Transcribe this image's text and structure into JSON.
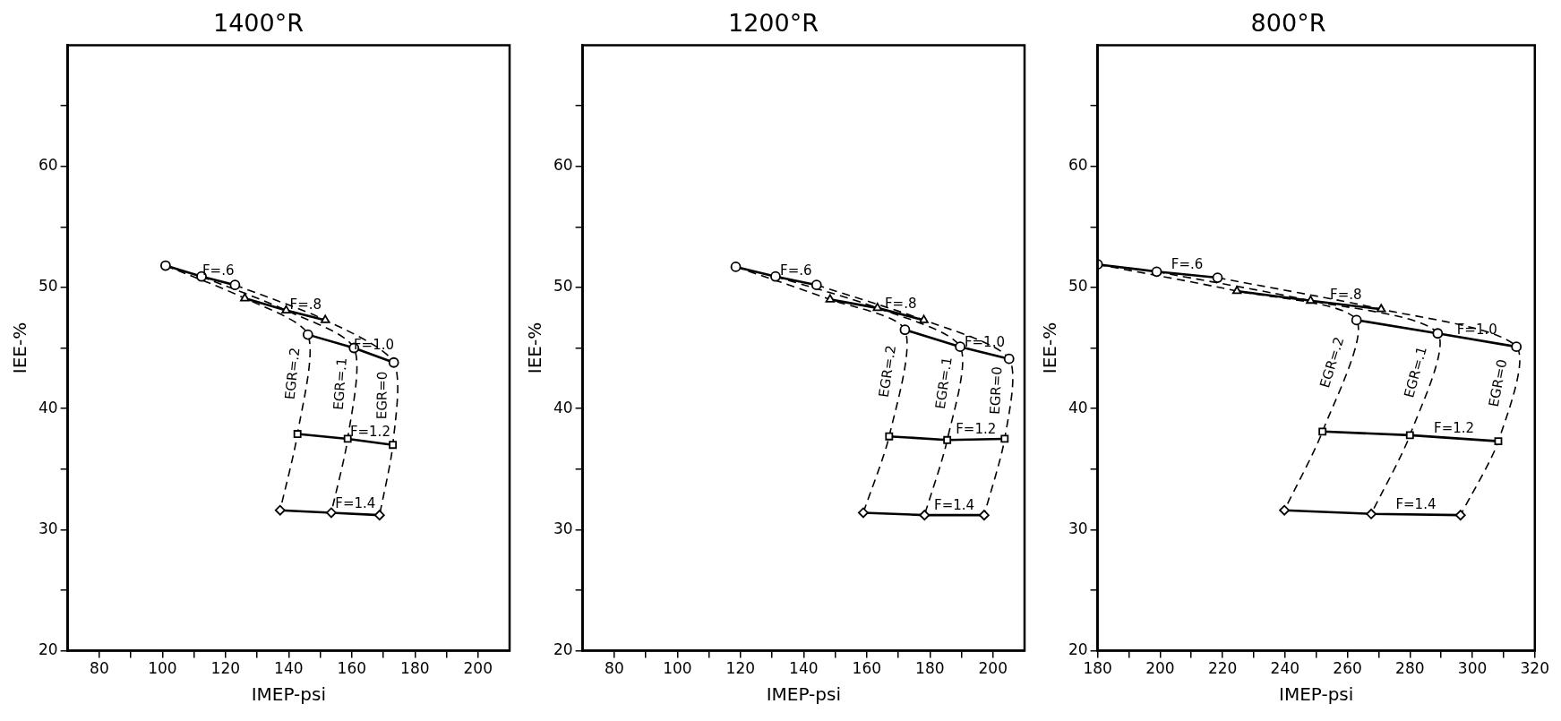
{
  "chart_data": [
    {
      "type": "line",
      "title": "1400°R",
      "xlabel": "IMEP-psi",
      "ylabel": "IEE-%",
      "xlim": [
        70,
        210
      ],
      "xticks": [
        80,
        {
          "value": 90,
          "label": null
        },
        100,
        {
          "value": 110,
          "label": null
        },
        120,
        {
          "value": 130,
          "label": null
        },
        140,
        {
          "value": 150,
          "label": null
        },
        160,
        {
          "value": 170,
          "label": null
        },
        180,
        {
          "value": 190,
          "label": null
        },
        200
      ],
      "ylim": [
        20,
        70
      ],
      "yticks": [
        20,
        {
          "value": 25,
          "label": null
        },
        30,
        {
          "value": 35,
          "label": null
        },
        40,
        {
          "value": 45,
          "label": null
        },
        50,
        {
          "value": 55,
          "label": null
        },
        60,
        {
          "value": 65,
          "label": null
        }
      ],
      "grid": false,
      "legend": false,
      "series": [
        {
          "name": "F=.6",
          "type": "line",
          "color": "#000000",
          "marker": "circle",
          "line_style": "solid",
          "x": [
            101.0,
            112.4,
            123.0
          ],
          "values": [
            51.8,
            50.9,
            50.2
          ]
        },
        {
          "name": "F=.8",
          "type": "line",
          "color": "#000000",
          "marker": "triangle",
          "line_style": "solid",
          "x": [
            126.1,
            139.2,
            151.6
          ],
          "values": [
            49.1,
            48.1,
            47.3
          ]
        },
        {
          "name": "F=1.0",
          "type": "line",
          "color": "#000000",
          "marker": "circle",
          "line_style": "solid",
          "x": [
            146.1,
            160.7,
            173.3
          ],
          "values": [
            46.1,
            45.0,
            43.8
          ]
        },
        {
          "name": "F=1.2",
          "type": "line",
          "color": "#000000",
          "marker": "square",
          "line_style": "solid",
          "x": [
            142.8,
            158.7,
            173.0
          ],
          "values": [
            37.9,
            37.5,
            37.0
          ]
        },
        {
          "name": "F=1.4",
          "type": "line",
          "color": "#000000",
          "marker": "diamond",
          "line_style": "solid",
          "x": [
            137.3,
            153.5,
            168.8
          ],
          "values": [
            31.6,
            31.4,
            31.2
          ]
        },
        {
          "name": "EGR=.2",
          "type": "line",
          "color": "#000000",
          "marker": "none",
          "line_style": "dashed",
          "x": [
            101.0,
            126.1,
            146.1,
            142.8,
            137.3
          ],
          "values": [
            51.8,
            49.1,
            46.1,
            37.9,
            31.6
          ]
        },
        {
          "name": "EGR=.1",
          "type": "line",
          "color": "#000000",
          "marker": "none",
          "line_style": "dashed",
          "x": [
            112.4,
            139.2,
            160.7,
            158.7,
            153.5
          ],
          "values": [
            50.9,
            48.1,
            45.0,
            37.5,
            31.4
          ]
        },
        {
          "name": "EGR=0",
          "type": "line",
          "color": "#000000",
          "marker": "none",
          "line_style": "dashed",
          "x": [
            123.0,
            151.6,
            173.3,
            173.0,
            168.8
          ],
          "values": [
            50.2,
            47.3,
            43.8,
            37.0,
            31.2
          ]
        }
      ]
    },
    {
      "type": "line",
      "title": "1200°R",
      "xlabel": "IMEP-psi",
      "ylabel": "IEE-%",
      "xlim": [
        70,
        210
      ],
      "xticks": [
        80,
        {
          "value": 90,
          "label": null
        },
        100,
        {
          "value": 110,
          "label": null
        },
        120,
        {
          "value": 130,
          "label": null
        },
        140,
        {
          "value": 150,
          "label": null
        },
        160,
        {
          "value": 170,
          "label": null
        },
        180,
        {
          "value": 190,
          "label": null
        },
        200
      ],
      "ylim": [
        20,
        70
      ],
      "yticks": [
        20,
        {
          "value": 25,
          "label": null
        },
        30,
        {
          "value": 35,
          "label": null
        },
        40,
        {
          "value": 45,
          "label": null
        },
        50,
        {
          "value": 55,
          "label": null
        },
        60,
        {
          "value": 65,
          "label": null
        }
      ],
      "grid": false,
      "legend": false,
      "series": [
        {
          "name": "F=.6",
          "type": "line",
          "color": "#000000",
          "marker": "circle",
          "line_style": "solid",
          "x": [
            118.5,
            131.1,
            144.1
          ],
          "values": [
            51.7,
            50.9,
            50.2
          ]
        },
        {
          "name": "F=.8",
          "type": "line",
          "color": "#000000",
          "marker": "triangle",
          "line_style": "solid",
          "x": [
            148.4,
            163.4,
            178.1
          ],
          "values": [
            49.0,
            48.3,
            47.3
          ]
        },
        {
          "name": "F=1.0",
          "type": "line",
          "color": "#000000",
          "marker": "circle",
          "line_style": "solid",
          "x": [
            172.1,
            189.6,
            205.1
          ],
          "values": [
            46.5,
            45.1,
            44.1
          ]
        },
        {
          "name": "F=1.2",
          "type": "line",
          "color": "#000000",
          "marker": "square",
          "line_style": "solid",
          "x": [
            167.1,
            185.5,
            203.7
          ],
          "values": [
            37.7,
            37.4,
            37.5
          ]
        },
        {
          "name": "F=1.4",
          "type": "line",
          "color": "#000000",
          "marker": "diamond",
          "line_style": "solid",
          "x": [
            158.9,
            178.3,
            197.2
          ],
          "values": [
            31.4,
            31.2,
            31.2
          ]
        },
        {
          "name": "EGR=.2",
          "type": "line",
          "color": "#000000",
          "marker": "none",
          "line_style": "dashed",
          "x": [
            118.5,
            148.4,
            172.1,
            167.1,
            158.9
          ],
          "values": [
            51.7,
            49.0,
            46.5,
            37.7,
            31.4
          ]
        },
        {
          "name": "EGR=.1",
          "type": "line",
          "color": "#000000",
          "marker": "none",
          "line_style": "dashed",
          "x": [
            131.1,
            163.4,
            189.6,
            185.5,
            178.3
          ],
          "values": [
            50.9,
            48.3,
            45.1,
            37.4,
            31.2
          ]
        },
        {
          "name": "EGR=0",
          "type": "line",
          "color": "#000000",
          "marker": "none",
          "line_style": "dashed",
          "x": [
            144.1,
            178.1,
            205.1,
            203.7,
            197.2
          ],
          "values": [
            50.2,
            47.3,
            44.1,
            37.5,
            31.2
          ]
        }
      ]
    },
    {
      "type": "line",
      "title": "800°R",
      "xlabel": "IMEP-psi",
      "ylabel": "IEE-%",
      "xlim": [
        180,
        320
      ],
      "xticks": [
        180,
        {
          "value": 190,
          "label": null
        },
        200,
        {
          "value": 210,
          "label": null
        },
        220,
        {
          "value": 230,
          "label": null
        },
        240,
        {
          "value": 250,
          "label": null
        },
        260,
        {
          "value": 270,
          "label": null
        },
        280,
        {
          "value": 290,
          "label": null
        },
        300,
        {
          "value": 310,
          "label": null
        },
        320
      ],
      "ylim": [
        20,
        70
      ],
      "yticks": [
        20,
        {
          "value": 25,
          "label": null
        },
        30,
        {
          "value": 35,
          "label": null
        },
        40,
        {
          "value": 45,
          "label": null
        },
        50,
        {
          "value": 55,
          "label": null
        },
        60,
        {
          "value": 65,
          "label": null
        }
      ],
      "grid": false,
      "legend": false,
      "series": [
        {
          "name": "F=.6",
          "type": "line",
          "color": "#000000",
          "marker": "circle",
          "line_style": "solid",
          "x": [
            180,
            198.9,
            218.4
          ],
          "values": [
            51.9,
            51.3,
            50.8
          ]
        },
        {
          "name": "F=.8",
          "type": "line",
          "color": "#000000",
          "marker": "triangle",
          "line_style": "solid",
          "x": [
            224.6,
            248.2,
            270.8
          ],
          "values": [
            49.7,
            48.9,
            48.2
          ]
        },
        {
          "name": "F=1.0",
          "type": "line",
          "color": "#000000",
          "marker": "circle",
          "line_style": "solid",
          "x": [
            262.9,
            288.9,
            314.1
          ],
          "values": [
            47.3,
            46.2,
            45.1
          ]
        },
        {
          "name": "F=1.2",
          "type": "line",
          "color": "#000000",
          "marker": "square",
          "line_style": "solid",
          "x": [
            252.0,
            280.0,
            308.3
          ],
          "values": [
            38.1,
            37.8,
            37.3
          ]
        },
        {
          "name": "F=1.4",
          "type": "line",
          "color": "#000000",
          "marker": "diamond",
          "line_style": "solid",
          "x": [
            239.8,
            267.6,
            296.2
          ],
          "values": [
            31.6,
            31.3,
            31.2
          ]
        },
        {
          "name": "EGR=.2",
          "type": "line",
          "color": "#000000",
          "marker": "none",
          "line_style": "dashed",
          "x": [
            180,
            224.6,
            262.9,
            252.0,
            239.8
          ],
          "values": [
            51.9,
            49.7,
            47.3,
            38.1,
            31.6
          ]
        },
        {
          "name": "EGR=.1",
          "type": "line",
          "color": "#000000",
          "marker": "none",
          "line_style": "dashed",
          "x": [
            198.9,
            248.2,
            288.9,
            280.0,
            267.6
          ],
          "values": [
            51.3,
            48.9,
            46.2,
            37.8,
            31.3
          ]
        },
        {
          "name": "EGR=0",
          "type": "line",
          "color": "#000000",
          "marker": "none",
          "line_style": "dashed",
          "x": [
            218.4,
            270.8,
            314.1,
            308.3,
            296.2
          ],
          "values": [
            50.8,
            48.2,
            45.1,
            37.3,
            31.2
          ]
        }
      ]
    }
  ]
}
